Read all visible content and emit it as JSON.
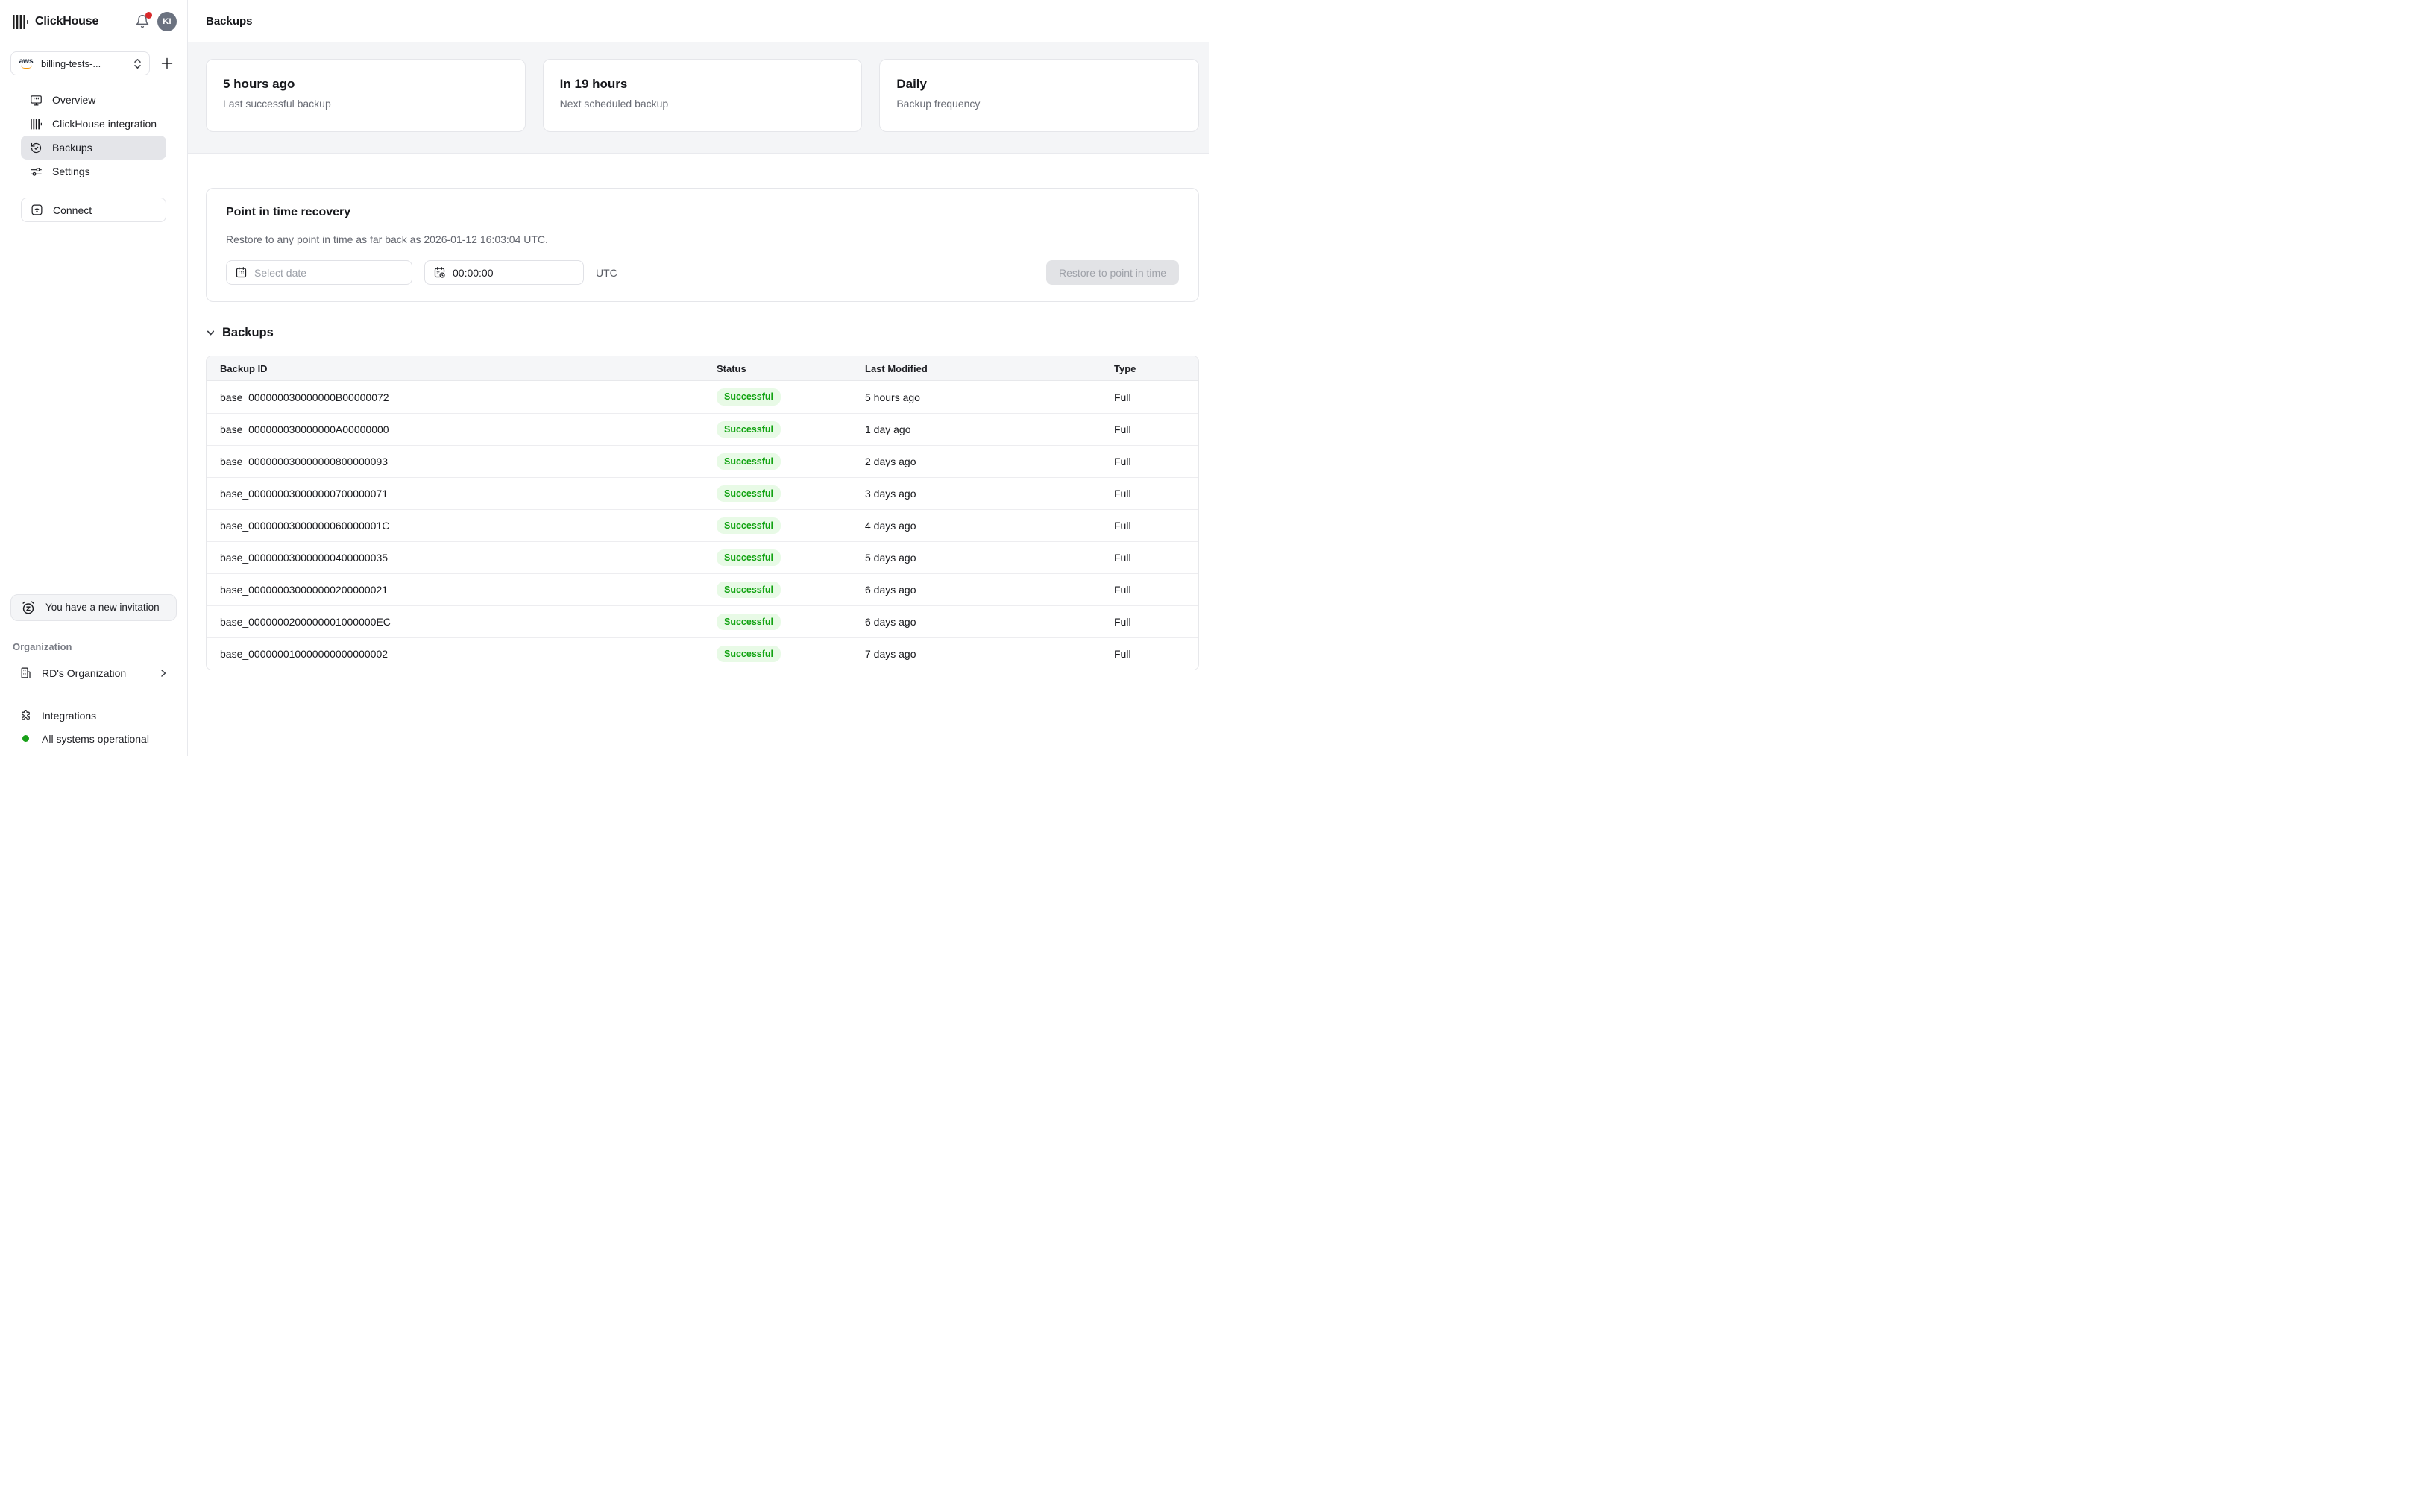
{
  "brand": {
    "name": "ClickHouse",
    "avatar_initials": "KI"
  },
  "sidebar": {
    "service_selector": {
      "provider": "aws",
      "label": "billing-tests-..."
    },
    "nav": [
      {
        "label": "Overview"
      },
      {
        "label": "ClickHouse integration"
      },
      {
        "label": "Backups",
        "active": true
      },
      {
        "label": "Settings"
      }
    ],
    "connect_label": "Connect",
    "invitation_text": "You have a new invitation",
    "organization_label": "Organization",
    "organization_name": "RD's Organization",
    "integrations_label": "Integrations",
    "status_text": "All systems operational"
  },
  "header": {
    "title": "Backups"
  },
  "stat_cards": [
    {
      "value": "5 hours ago",
      "label": "Last successful backup"
    },
    {
      "value": "In 19 hours",
      "label": "Next scheduled backup"
    },
    {
      "value": "Daily",
      "label": "Backup frequency"
    }
  ],
  "pitr": {
    "title": "Point in time recovery",
    "description": "Restore to any point in time as far back as 2026-01-12 16:03:04 UTC.",
    "date_placeholder": "Select date",
    "time_value": "00:00:00",
    "timezone": "UTC",
    "restore_button": "Restore to point in time"
  },
  "backups_table": {
    "section_title": "Backups",
    "columns": [
      "Backup ID",
      "Status",
      "Last Modified",
      "Type"
    ],
    "rows": [
      {
        "id": "base_000000030000000B00000072",
        "status": "Successful",
        "last_modified": "5 hours ago",
        "type": "Full"
      },
      {
        "id": "base_000000030000000A00000000",
        "status": "Successful",
        "last_modified": "1 day ago",
        "type": "Full"
      },
      {
        "id": "base_000000030000000800000093",
        "status": "Successful",
        "last_modified": "2 days ago",
        "type": "Full"
      },
      {
        "id": "base_000000030000000700000071",
        "status": "Successful",
        "last_modified": "3 days ago",
        "type": "Full"
      },
      {
        "id": "base_00000003000000060000001C",
        "status": "Successful",
        "last_modified": "4 days ago",
        "type": "Full"
      },
      {
        "id": "base_000000030000000400000035",
        "status": "Successful",
        "last_modified": "5 days ago",
        "type": "Full"
      },
      {
        "id": "base_000000030000000200000021",
        "status": "Successful",
        "last_modified": "6 days ago",
        "type": "Full"
      },
      {
        "id": "base_0000000200000001000000EC",
        "status": "Successful",
        "last_modified": "6 days ago",
        "type": "Full"
      },
      {
        "id": "base_000000010000000000000002",
        "status": "Successful",
        "last_modified": "7 days ago",
        "type": "Full"
      }
    ]
  },
  "colors": {
    "badge_text": "#12a312",
    "badge_bg": "#e8fae6",
    "status_dot_green": "#18a018",
    "alert_red": "#d9292b",
    "sidebar_active_bg": "#e4e5e9"
  }
}
